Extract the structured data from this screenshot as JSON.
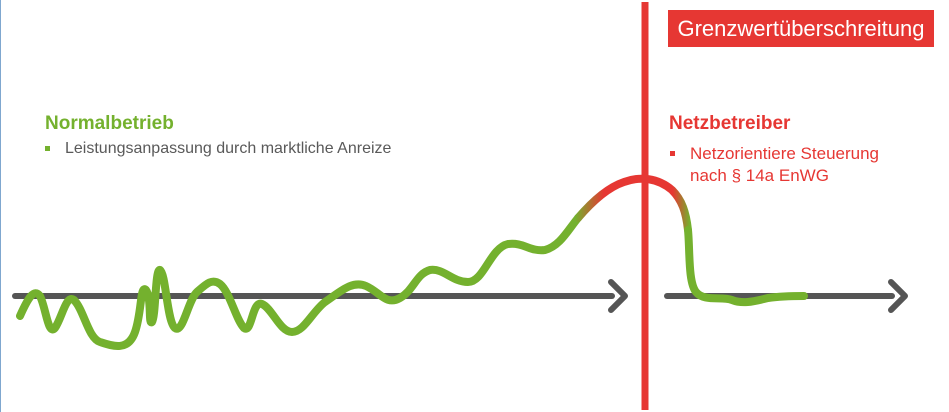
{
  "badge": {
    "text": "Grenzwertüberschreitung"
  },
  "normal": {
    "heading": "Normalbetrieb",
    "bullet": "Leistungsanpassung durch marktliche Anreize"
  },
  "grid_operator": {
    "heading": "Netzbetreiber",
    "bullet_line1": "Netzorientiere Steuerung",
    "bullet_line2": "nach § 14a EnWG"
  },
  "colors": {
    "green": "#74b12e",
    "red": "#e63733",
    "axis": "#555555",
    "text_gray": "#595959"
  }
}
